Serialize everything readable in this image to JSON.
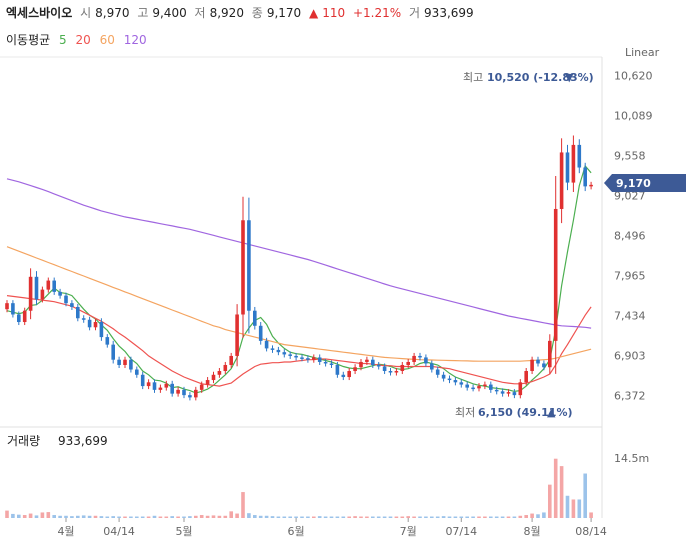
{
  "header": {
    "name": "엑세스바이오",
    "open_label": "시",
    "open": "8,970",
    "high_label": "고",
    "high": "9,400",
    "low_label": "저",
    "low": "8,920",
    "close_label": "종",
    "close": "9,170",
    "change_arrow": "▲",
    "change": "110",
    "change_pct": "+1.21%",
    "volume_label": "거",
    "volume": "933,699"
  },
  "ma_legend": {
    "label": "이동평균",
    "items": [
      {
        "period": "5",
        "color": "#4caf50"
      },
      {
        "period": "20",
        "color": "#ef5350"
      },
      {
        "period": "60",
        "color": "#f4a460"
      },
      {
        "period": "120",
        "color": "#a066e0"
      }
    ]
  },
  "scale_label": "Linear",
  "price_tag": {
    "value": "9,170",
    "color": "#3d5a96"
  },
  "high_tag": {
    "label": "최고",
    "value": "10,520 (-12.83%)",
    "arrow": "▼"
  },
  "low_tag": {
    "label": "최저",
    "value": "6,150 (49.11%)",
    "arrow": "▲"
  },
  "volume_panel": {
    "label": "거래량",
    "value": "933,699",
    "axis_label": "14.5m"
  },
  "chart_data": {
    "type": "candlestick",
    "y_ticks": [
      "10,620",
      "10,089",
      "9,558",
      "9,027",
      "8,496",
      "7,965",
      "7,434",
      "6,903",
      "6,372"
    ],
    "y_tick_values": [
      10620,
      10089,
      9558,
      9027,
      8496,
      7965,
      7434,
      6903,
      6372
    ],
    "ylim": [
      6050,
      10800
    ],
    "x_ticks": [
      "4월",
      "04/14",
      "5월",
      "6월",
      "7월",
      "07/14",
      "8월",
      "08/14"
    ],
    "x_tick_index": [
      10,
      19,
      30,
      49,
      68,
      77,
      89,
      99
    ],
    "up_color": "#e03030",
    "down_color": "#2d78c9",
    "close": [
      7600,
      7450,
      7350,
      7500,
      7950,
      7650,
      7780,
      7900,
      7750,
      7700,
      7600,
      7550,
      7400,
      7380,
      7280,
      7350,
      7150,
      7050,
      6850,
      6780,
      6850,
      6720,
      6650,
      6500,
      6550,
      6450,
      6480,
      6530,
      6400,
      6450,
      6380,
      6350,
      6450,
      6520,
      6580,
      6650,
      6700,
      6780,
      6900,
      7450,
      8700,
      7500,
      7300,
      7100,
      7000,
      6980,
      6950,
      6920,
      6900,
      6880,
      6870,
      6850,
      6880,
      6820,
      6800,
      6780,
      6650,
      6620,
      6700,
      6750,
      6820,
      6850,
      6780,
      6760,
      6700,
      6680,
      6700,
      6780,
      6820,
      6900,
      6880,
      6800,
      6720,
      6650,
      6600,
      6580,
      6550,
      6520,
      6480,
      6470,
      6500,
      6520,
      6450,
      6430,
      6400,
      6420,
      6380,
      6550,
      6700,
      6850,
      6800,
      6750,
      7100,
      8850,
      9600,
      9200,
      9700,
      9400,
      9150,
      9170
    ],
    "volume": [
      200,
      110,
      90,
      80,
      120,
      70,
      150,
      160,
      80,
      60,
      60,
      50,
      60,
      70,
      60,
      60,
      50,
      40,
      50,
      40,
      40,
      40,
      40,
      40,
      40,
      60,
      40,
      40,
      50,
      40,
      40,
      50,
      60,
      80,
      60,
      70,
      60,
      60,
      180,
      120,
      700,
      130,
      80,
      60,
      60,
      50,
      40,
      40,
      40,
      40,
      40,
      40,
      40,
      50,
      40,
      40,
      40,
      40,
      40,
      50,
      40,
      40,
      40,
      40,
      40,
      40,
      40,
      40,
      50,
      40,
      40,
      40,
      40,
      40,
      50,
      40,
      40,
      40,
      40,
      40,
      40,
      40,
      40,
      40,
      40,
      40,
      40,
      60,
      80,
      120,
      100,
      150,
      900,
      1600,
      1400,
      600,
      500,
      500,
      1200,
      150
    ],
    "volume_max": 1700,
    "ma_series": [
      {
        "period": 5,
        "values": [
          7500,
          7480,
          7460,
          7480,
          7570,
          7580,
          7640,
          7720,
          7800,
          7740,
          7730,
          7700,
          7610,
          7520,
          7440,
          7390,
          7310,
          7240,
          7130,
          7030,
          6960,
          6860,
          6800,
          6700,
          6650,
          6580,
          6570,
          6540,
          6480,
          6490,
          6460,
          6440,
          6410,
          6430,
          6460,
          6510,
          6580,
          6650,
          6730,
          6880,
          7150,
          7270,
          7370,
          7410,
          7320,
          7160,
          7070,
          7000,
          6950,
          6930,
          6920,
          6900,
          6880,
          6860,
          6840,
          6820,
          6790,
          6760,
          6740,
          6730,
          6730,
          6750,
          6770,
          6790,
          6780,
          6760,
          6730,
          6720,
          6730,
          6760,
          6800,
          6820,
          6800,
          6780,
          6730,
          6670,
          6620,
          6590,
          6560,
          6530,
          6510,
          6500,
          6480,
          6470,
          6460,
          6450,
          6430,
          6440,
          6500,
          6580,
          6650,
          6730,
          6850,
          7250,
          7830,
          8280,
          8700,
          9160,
          9420,
          9330
        ]
      },
      {
        "period": 20,
        "values": [
          7700,
          7690,
          7680,
          7670,
          7660,
          7650,
          7640,
          7630,
          7620,
          7600,
          7580,
          7560,
          7520,
          7480,
          7440,
          7400,
          7360,
          7310,
          7260,
          7200,
          7150,
          7090,
          7030,
          6970,
          6900,
          6850,
          6800,
          6750,
          6700,
          6660,
          6620,
          6590,
          6560,
          6530,
          6520,
          6510,
          6500,
          6520,
          6540,
          6600,
          6660,
          6710,
          6760,
          6790,
          6800,
          6810,
          6810,
          6820,
          6820,
          6830,
          6840,
          6850,
          6850,
          6860,
          6860,
          6850,
          6840,
          6830,
          6820,
          6810,
          6800,
          6800,
          6790,
          6780,
          6770,
          6770,
          6760,
          6760,
          6760,
          6760,
          6760,
          6760,
          6760,
          6750,
          6740,
          6730,
          6710,
          6690,
          6670,
          6650,
          6630,
          6610,
          6590,
          6570,
          6550,
          6540,
          6530,
          6530,
          6540,
          6560,
          6590,
          6620,
          6660,
          6780,
          6930,
          7050,
          7180,
          7310,
          7440,
          7550
        ]
      },
      {
        "period": 60,
        "values": [
          8350,
          8320,
          8290,
          8260,
          8230,
          8200,
          8170,
          8140,
          8110,
          8080,
          8050,
          8020,
          7990,
          7960,
          7930,
          7900,
          7870,
          7840,
          7810,
          7780,
          7750,
          7720,
          7690,
          7660,
          7630,
          7600,
          7570,
          7540,
          7510,
          7480,
          7450,
          7420,
          7390,
          7360,
          7330,
          7300,
          7280,
          7250,
          7230,
          7210,
          7190,
          7170,
          7150,
          7130,
          7110,
          7090,
          7070,
          7050,
          7040,
          7030,
          7020,
          7010,
          7000,
          6990,
          6980,
          6970,
          6960,
          6950,
          6940,
          6930,
          6920,
          6910,
          6900,
          6890,
          6880,
          6875,
          6870,
          6865,
          6860,
          6855,
          6850,
          6848,
          6846,
          6844,
          6842,
          6840,
          6838,
          6836,
          6834,
          6832,
          6830,
          6830,
          6830,
          6830,
          6830,
          6830,
          6830,
          6830,
          6835,
          6840,
          6845,
          6850,
          6855,
          6870,
          6890,
          6910,
          6930,
          6950,
          6970,
          6990
        ]
      },
      {
        "period": 120,
        "values": [
          9250,
          9230,
          9210,
          9185,
          9160,
          9135,
          9110,
          9080,
          9050,
          9020,
          8990,
          8960,
          8930,
          8900,
          8875,
          8850,
          8825,
          8805,
          8785,
          8765,
          8745,
          8730,
          8715,
          8700,
          8685,
          8670,
          8655,
          8640,
          8625,
          8610,
          8595,
          8580,
          8560,
          8540,
          8520,
          8500,
          8480,
          8460,
          8440,
          8420,
          8400,
          8380,
          8360,
          8340,
          8320,
          8300,
          8280,
          8260,
          8240,
          8220,
          8200,
          8180,
          8155,
          8130,
          8105,
          8080,
          8055,
          8030,
          8005,
          7980,
          7955,
          7930,
          7905,
          7880,
          7855,
          7830,
          7810,
          7790,
          7770,
          7750,
          7730,
          7710,
          7690,
          7670,
          7650,
          7630,
          7610,
          7590,
          7570,
          7550,
          7530,
          7510,
          7490,
          7470,
          7450,
          7430,
          7415,
          7400,
          7385,
          7370,
          7355,
          7340,
          7325,
          7310,
          7300,
          7295,
          7290,
          7285,
          7280,
          7270
        ]
      }
    ]
  }
}
